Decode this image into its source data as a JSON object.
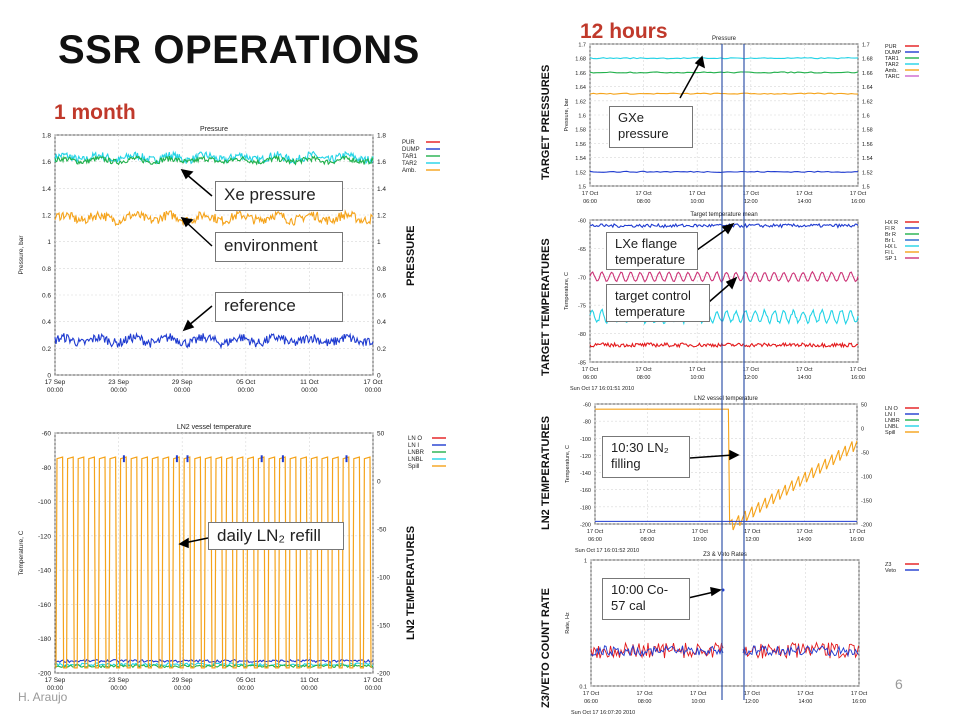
{
  "slide": {
    "title": "SSR OPERATIONS",
    "label_month": "1 month",
    "label_12h": "12 hours",
    "page_number": "6",
    "author": "H. Araujo"
  },
  "side_labels": {
    "pressure": "PRESSURE",
    "ln2_temperatures_left": "LN2 TEMPERATURES",
    "target_pressures": "TARGET PRESSURES",
    "target_temperatures": "TARGET TEMPERATURES",
    "ln2_temperatures_right": "LN2 TEMPERATURES",
    "z3_veto_count_rate": "Z3/VETO COUNT RATE"
  },
  "callouts": {
    "xe_pressure": "Xe pressure",
    "environment": "environment",
    "reference": "reference",
    "daily_refill": "daily LN₂ refill",
    "gxe_pressure": "GXe pressure",
    "lxe_flange": "LXe flange temperature",
    "target_control": "target control temperature",
    "ln2_filling": "10:30 LN₂ filling",
    "co57_cal": "10:00 Co-57 cal"
  },
  "colors": {
    "accent_red": "#c0392b",
    "pur": "#e31a1c",
    "dump": "#1f3bd0",
    "tar1": "#22b14c",
    "tar2": "#22d3e6",
    "amb": "#f5a31a",
    "tarc": "#cc66cc",
    "marker_line": "#3355aa"
  },
  "chart_data": [
    {
      "id": "pressure_month",
      "type": "line",
      "title": "Pressure",
      "ylabel": "Pressure, bar",
      "ylim": [
        0,
        1.8
      ],
      "y_ticks": [
        "0",
        "0.2",
        "0.4",
        "0.6",
        "0.8",
        "1",
        "1.2",
        "1.4",
        "1.6",
        "1.8"
      ],
      "x_ticks": [
        "17 Sep\n00:00",
        "23 Sep\n00:00",
        "29 Sep\n00:00",
        "05 Oct\n00:00",
        "11 Oct\n00:00",
        "17 Oct\n00:00"
      ],
      "x_range_days": [
        0,
        30
      ],
      "legend": [
        "PUR",
        "DUMP",
        "TAR1",
        "TAR2",
        "Amb."
      ],
      "legend_position": "right",
      "grid": true,
      "series": [
        {
          "name": "TAR2",
          "color": "#22d3e6",
          "level": 1.63,
          "noise": 0.03
        },
        {
          "name": "TAR1",
          "color": "#22b14c",
          "level": 1.61,
          "noise": 0.02
        },
        {
          "name": "Amb.",
          "color": "#f5a31a",
          "level": 1.18,
          "noise": 0.035
        },
        {
          "name": "DUMP",
          "color": "#1f3bd0",
          "level": 0.26,
          "noise": 0.035
        }
      ]
    },
    {
      "id": "ln2_month",
      "type": "line",
      "title": "LN2 vessel temperature",
      "ylabel": "Temperature, C",
      "ylim": [
        -200,
        -60
      ],
      "y_ticks": [
        "-200",
        "-180",
        "-160",
        "-140",
        "-120",
        "-100",
        "-80",
        "-60"
      ],
      "y2lim": [
        -200,
        50
      ],
      "y2_ticks": [
        "-200",
        "-150",
        "-100",
        "-50",
        "0",
        "50"
      ],
      "x_ticks": [
        "17 Sep\n00:00",
        "23 Sep\n00:00",
        "29 Sep\n00:00",
        "05 Oct\n00:00",
        "11 Oct\n00:00",
        "17 Oct\n00:00"
      ],
      "legend": [
        "LN O",
        "LN I",
        "LNBR",
        "LNBL",
        "Spill"
      ],
      "legend_position": "right",
      "grid": true,
      "refill_cycles": 30,
      "series": [
        {
          "name": "Spill",
          "color": "#f5a31a",
          "high": -75,
          "low": -197
        },
        {
          "name": "LNBL",
          "color": "#22d3e6",
          "level": -195
        },
        {
          "name": "LNBR",
          "color": "#22b14c",
          "level": -196
        },
        {
          "name": "LN I",
          "color": "#1f3bd0",
          "level": -193
        }
      ]
    },
    {
      "id": "pressure_12h",
      "type": "line",
      "title": "Pressure",
      "ylabel": "Pressure, bar",
      "ylim": [
        1.5,
        1.7
      ],
      "y_ticks": [
        "1.5",
        "1.52",
        "1.54",
        "1.56",
        "1.58",
        "1.6",
        "1.62",
        "1.64",
        "1.66",
        "1.68",
        "1.7"
      ],
      "x_ticks": [
        "17 Oct\n06:00",
        "17 Oct\n08:00",
        "17 Oct\n10:00",
        "17 Oct\n12:00",
        "17 Oct\n14:00",
        "17 Oct\n16:00"
      ],
      "legend": [
        "PUR",
        "DUMP",
        "TAR1",
        "TAR2",
        "Amb.",
        "TARC"
      ],
      "legend_position": "right",
      "grid": true,
      "series": [
        {
          "name": "TAR2",
          "color": "#22d3e6",
          "level": 1.68
        },
        {
          "name": "TAR1",
          "color": "#22b14c",
          "level": 1.66
        },
        {
          "name": "Amb.",
          "color": "#f5a31a",
          "level": 1.63
        },
        {
          "name": "DUMP",
          "color": "#1f3bd0",
          "level": 1.52
        }
      ]
    },
    {
      "id": "target_temp_12h",
      "type": "line",
      "title": "Target temperature mean",
      "ylabel": "Temperature, C",
      "ylim": [
        -85,
        -60
      ],
      "y_ticks": [
        "-85",
        "-80",
        "-75",
        "-70",
        "-65",
        "-60"
      ],
      "x_ticks": [
        "17 Oct\n06:00",
        "17 Oct\n08:00",
        "17 Oct\n10:00",
        "17 Oct\n12:00",
        "17 Oct\n14:00",
        "17 Oct\n16:00"
      ],
      "legend": [
        "HX R",
        "Fl R",
        "Br R",
        "Br L",
        "HX L",
        "Fl L",
        "SP 1"
      ],
      "legend_position": "right",
      "timestamp": "Sun Oct 17 16:01:51 2010",
      "grid": true,
      "series": [
        {
          "name": "Fl R",
          "color": "#1f3bd0",
          "level": -61
        },
        {
          "name": "SP 1",
          "color": "#cc3377",
          "level": -70
        },
        {
          "name": "Br R",
          "color": "#22d3e6",
          "level": -77
        },
        {
          "name": "HX R",
          "color": "#e31a1c",
          "level": -82
        }
      ]
    },
    {
      "id": "ln2_12h",
      "type": "line",
      "title": "LN2 vessel temperature",
      "ylabel": "Temperature, C",
      "ylim": [
        -200,
        -60
      ],
      "y_ticks": [
        "-200",
        "-180",
        "-160",
        "-140",
        "-120",
        "-100",
        "-80",
        "-60"
      ],
      "y2_ticks": [
        "-200",
        "-150",
        "-100",
        "-50",
        "0",
        "50"
      ],
      "x_ticks": [
        "17 Oct\n06:00",
        "17 Oct\n08:00",
        "17 Oct\n10:00",
        "17 Oct\n12:00",
        "17 Oct\n14:00",
        "17 Oct\n16:00"
      ],
      "legend": [
        "LN O",
        "LN I",
        "LNBR",
        "LNBL",
        "Spill"
      ],
      "legend_position": "right",
      "timestamp": "Sun Oct 17 16:01:52 2010",
      "grid": true
    },
    {
      "id": "z3_veto_12h",
      "type": "line",
      "title": "Z3 & Veto Rates",
      "ylabel": "Rate, Hz",
      "y_ticks": [
        "0.1",
        "1"
      ],
      "log_scale": true,
      "x_ticks": [
        "17 Oct\n06:00",
        "17 Oct\n08:00",
        "17 Oct\n10:00",
        "17 Oct\n12:00",
        "17 Oct\n14:00",
        "17 Oct\n16:00"
      ],
      "legend": [
        "Z3",
        "Veto"
      ],
      "legend_position": "right",
      "timestamp": "Sun Oct 17 16:07:20 2010",
      "grid": true,
      "series": [
        {
          "name": "Z3",
          "color": "#e31a1c"
        },
        {
          "name": "Veto",
          "color": "#1f3bd0"
        }
      ]
    }
  ]
}
